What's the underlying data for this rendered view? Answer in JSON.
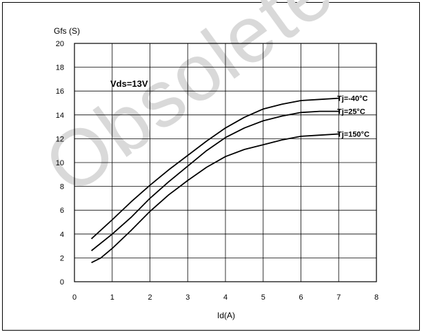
{
  "chart_data": {
    "type": "line",
    "title": "",
    "annotation": "Vds=13V",
    "xlabel": "Id(A)",
    "ylabel": "Gfs (S)",
    "xlim": [
      0,
      8
    ],
    "ylim": [
      0,
      20
    ],
    "x_ticks": [
      "0",
      "1",
      "2",
      "3",
      "4",
      "5",
      "6",
      "7",
      "8"
    ],
    "y_ticks": [
      "0",
      "2",
      "4",
      "6",
      "8",
      "10",
      "12",
      "14",
      "16",
      "18",
      "20"
    ],
    "grid": true,
    "series": [
      {
        "name": "Tj=-40°C",
        "x": [
          0.45,
          1.0,
          1.5,
          2.0,
          2.5,
          3.0,
          3.5,
          4.0,
          4.5,
          5.0,
          5.5,
          6.0,
          6.5,
          7.0
        ],
        "y": [
          3.6,
          5.2,
          6.7,
          8.1,
          9.4,
          10.6,
          11.8,
          12.9,
          13.8,
          14.5,
          14.9,
          15.2,
          15.3,
          15.4
        ]
      },
      {
        "name": "Tj=25°C",
        "x": [
          0.45,
          1.0,
          1.5,
          2.0,
          2.5,
          3.0,
          3.5,
          4.0,
          4.5,
          5.0,
          5.5,
          6.0,
          6.5,
          7.0
        ],
        "y": [
          2.6,
          4.0,
          5.4,
          7.0,
          8.4,
          9.7,
          11.0,
          12.1,
          12.9,
          13.5,
          13.9,
          14.2,
          14.3,
          14.3
        ]
      },
      {
        "name": "Tj=150°C",
        "x": [
          0.45,
          0.7,
          1.0,
          1.5,
          2.0,
          2.5,
          3.0,
          3.5,
          4.0,
          4.5,
          5.0,
          5.5,
          6.0,
          6.5,
          7.0
        ],
        "y": [
          1.6,
          2.0,
          2.8,
          4.3,
          5.9,
          7.3,
          8.5,
          9.6,
          10.5,
          11.1,
          11.5,
          11.9,
          12.2,
          12.3,
          12.4
        ]
      }
    ]
  },
  "colors": {
    "line": "#000000",
    "grid": "#000000",
    "watermark": "#d9d9d9"
  },
  "watermark_text": "Obsolete Product(s) - Obsolete Product(s)"
}
